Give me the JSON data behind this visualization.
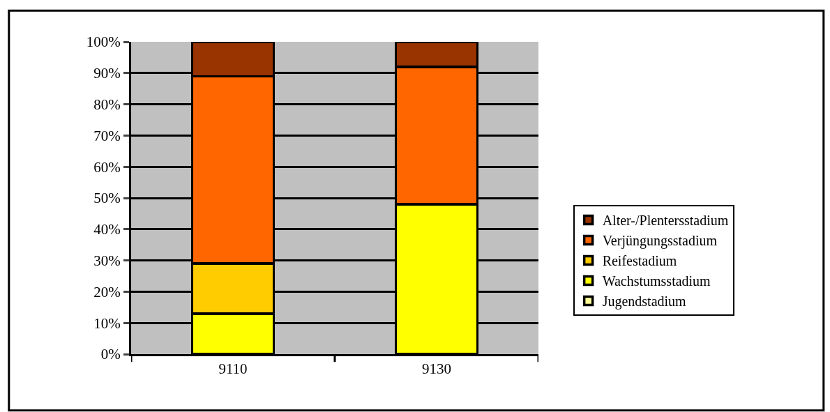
{
  "chart_data": {
    "type": "bar",
    "stacked": true,
    "categories": [
      "9110",
      "9130"
    ],
    "series": [
      {
        "name": "Jugendstadium",
        "color": "#ffff99",
        "values": [
          0,
          0
        ]
      },
      {
        "name": "Wachstumsstadium",
        "color": "#ffff00",
        "values": [
          13,
          48
        ]
      },
      {
        "name": "Reifestadium",
        "color": "#ffcc00",
        "values": [
          16,
          0
        ]
      },
      {
        "name": "Verjüngungsstadium",
        "color": "#ff6600",
        "values": [
          60,
          44
        ]
      },
      {
        "name": "Alter-/Plentersstadium",
        "color": "#993300",
        "values": [
          11,
          8
        ]
      }
    ],
    "ylim": [
      0,
      100
    ],
    "yticks": [
      {
        "value": 0,
        "label": "0%"
      },
      {
        "value": 10,
        "label": "10%"
      },
      {
        "value": 20,
        "label": "20%"
      },
      {
        "value": 30,
        "label": "30%"
      },
      {
        "value": 40,
        "label": "40%"
      },
      {
        "value": 50,
        "label": "50%"
      },
      {
        "value": 60,
        "label": "60%"
      },
      {
        "value": 70,
        "label": "70%"
      },
      {
        "value": 80,
        "label": "80%"
      },
      {
        "value": 90,
        "label": "90%"
      },
      {
        "value": 100,
        "label": "100%"
      }
    ],
    "grid": "y",
    "legend": "right"
  }
}
